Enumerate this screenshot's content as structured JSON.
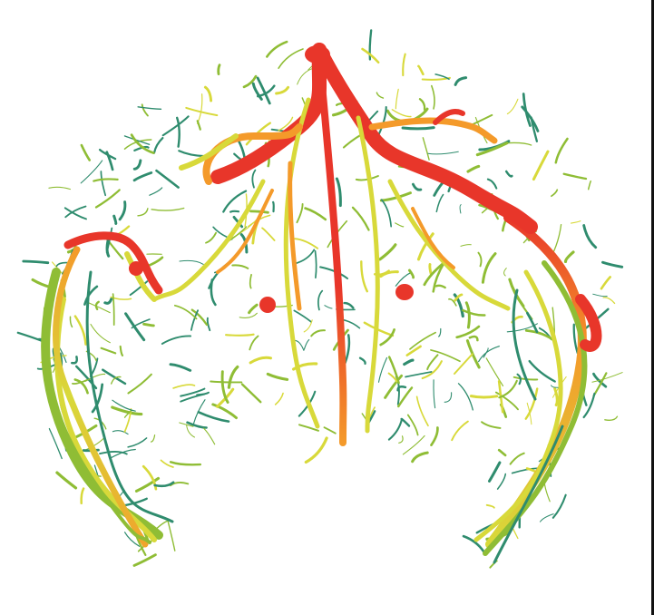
{
  "image": {
    "palette": {
      "background": "#ffffff",
      "high": "#e8362a",
      "upper_mid": "#f49a2a",
      "mid": "#d8d93a",
      "low": "#8fbd35",
      "lowest": "#2f8c6e"
    }
  }
}
